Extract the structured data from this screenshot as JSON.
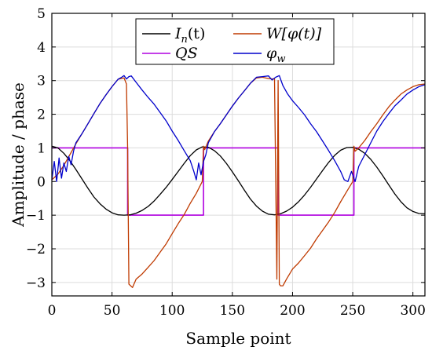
{
  "chart_data": {
    "type": "line",
    "title": "",
    "xlabel": "Sample point",
    "ylabel": "Amplitude / phase",
    "xlim": [
      0,
      310
    ],
    "ylim": [
      -3.4,
      5
    ],
    "xticks": [
      0,
      50,
      100,
      150,
      200,
      250,
      300
    ],
    "yticks": [
      5,
      4,
      3,
      2,
      1,
      0,
      -1,
      -2,
      -3
    ],
    "ytick_labels": [
      "5",
      "4",
      "3",
      "2",
      "1",
      "0",
      "−1",
      "−2",
      "−3"
    ],
    "grid": true,
    "legend_placement": "top-center",
    "legend_columns": 2,
    "series": [
      {
        "name": "I_n(t)",
        "legend_main": "I",
        "legend_sub": "n",
        "legend_rest": "(t)",
        "color": "#000000",
        "x": [
          0,
          5,
          10,
          15,
          20,
          25,
          30,
          35,
          40,
          45,
          50,
          55,
          60,
          65,
          70,
          75,
          80,
          85,
          90,
          95,
          100,
          105,
          110,
          115,
          120,
          125,
          130,
          135,
          140,
          145,
          150,
          155,
          160,
          165,
          170,
          175,
          180,
          185,
          190,
          195,
          200,
          205,
          210,
          215,
          220,
          225,
          230,
          235,
          240,
          245,
          250,
          255,
          260,
          265,
          270,
          275,
          280,
          285,
          290,
          295,
          300,
          305,
          310
        ],
        "y": [
          1.05,
          1.0,
          0.84,
          0.62,
          0.36,
          0.08,
          -0.2,
          -0.46,
          -0.66,
          -0.82,
          -0.93,
          -0.99,
          -1.0,
          -0.99,
          -0.94,
          -0.86,
          -0.74,
          -0.58,
          -0.38,
          -0.17,
          0.06,
          0.3,
          0.54,
          0.77,
          0.94,
          1.03,
          1.02,
          0.92,
          0.76,
          0.54,
          0.29,
          0.02,
          -0.26,
          -0.52,
          -0.73,
          -0.88,
          -0.97,
          -0.99,
          -0.96,
          -0.88,
          -0.76,
          -0.6,
          -0.4,
          -0.17,
          0.08,
          0.33,
          0.57,
          0.78,
          0.93,
          1.01,
          1.02,
          0.96,
          0.84,
          0.66,
          0.43,
          0.17,
          -0.1,
          -0.37,
          -0.6,
          -0.78,
          -0.89,
          -0.95,
          -0.96
        ]
      },
      {
        "name": "W[φ(t)]",
        "legend_main": "W[φ(t)]",
        "legend_sub": "",
        "legend_rest": "",
        "color": "#bf3a00",
        "x": [
          0,
          5,
          10,
          15,
          20,
          25,
          30,
          35,
          40,
          45,
          50,
          55,
          60,
          62,
          63,
          64,
          67,
          70,
          75,
          80,
          85,
          90,
          95,
          100,
          105,
          110,
          115,
          120,
          125,
          126,
          127,
          130,
          135,
          140,
          145,
          150,
          155,
          160,
          165,
          170,
          175,
          180,
          185,
          187,
          188,
          189,
          190,
          192,
          195,
          200,
          205,
          210,
          215,
          220,
          225,
          230,
          235,
          240,
          245,
          250,
          251,
          252,
          255,
          260,
          265,
          270,
          275,
          280,
          285,
          290,
          295,
          300,
          305,
          310
        ],
        "y": [
          0.05,
          0.22,
          0.48,
          0.8,
          1.12,
          1.42,
          1.72,
          2.02,
          2.32,
          2.58,
          2.82,
          3.04,
          3.08,
          2.9,
          1.0,
          -3.05,
          -3.15,
          -2.9,
          -2.75,
          -2.55,
          -2.35,
          -2.1,
          -1.85,
          -1.55,
          -1.25,
          -0.98,
          -0.65,
          -0.35,
          0.0,
          1.05,
          0.95,
          1.2,
          1.48,
          1.72,
          1.98,
          2.24,
          2.48,
          2.7,
          2.92,
          3.08,
          3.1,
          3.06,
          3.05,
          -2.9,
          3.0,
          -3.05,
          -3.1,
          -3.1,
          -2.9,
          -2.6,
          -2.42,
          -2.2,
          -1.98,
          -1.7,
          -1.45,
          -1.2,
          -0.92,
          -0.6,
          -0.3,
          0.0,
          1.05,
          0.9,
          1.0,
          1.22,
          1.48,
          1.72,
          1.98,
          2.22,
          2.42,
          2.6,
          2.72,
          2.82,
          2.88,
          2.9
        ]
      },
      {
        "name": "QS",
        "legend_main": "QS",
        "legend_sub": "",
        "legend_rest": "",
        "color": "#b000e0",
        "step": true,
        "x": [
          0,
          63,
          63,
          126,
          126,
          188,
          188,
          251,
          251,
          310
        ],
        "y": [
          1,
          1,
          -1,
          -1,
          1,
          1,
          -1,
          -1,
          1,
          1
        ]
      },
      {
        "name": "φ_w",
        "legend_main": "φ",
        "legend_sub": "w",
        "legend_rest": "",
        "color": "#0000cc",
        "x": [
          0,
          2,
          4,
          6,
          8,
          10,
          12,
          14,
          16,
          18,
          20,
          25,
          30,
          35,
          40,
          45,
          50,
          55,
          58,
          60,
          62,
          64,
          66,
          70,
          75,
          80,
          85,
          90,
          95,
          100,
          105,
          110,
          115,
          118,
          120,
          122,
          124,
          126,
          128,
          130,
          135,
          140,
          145,
          150,
          155,
          160,
          165,
          170,
          175,
          180,
          183,
          186,
          189,
          192,
          196,
          200,
          205,
          210,
          215,
          220,
          225,
          230,
          235,
          240,
          243,
          246,
          249,
          252,
          255,
          260,
          265,
          270,
          275,
          280,
          285,
          290,
          295,
          300,
          305,
          310
        ],
        "y": [
          0.05,
          0.6,
          0.0,
          0.7,
          0.1,
          0.55,
          0.3,
          0.75,
          0.5,
          0.9,
          1.15,
          1.42,
          1.72,
          2.02,
          2.32,
          2.58,
          2.82,
          3.04,
          3.1,
          3.15,
          3.05,
          3.12,
          3.14,
          2.95,
          2.72,
          2.5,
          2.3,
          2.05,
          1.8,
          1.5,
          1.22,
          0.92,
          0.62,
          0.3,
          0.05,
          0.55,
          0.2,
          0.6,
          0.8,
          1.15,
          1.48,
          1.72,
          1.98,
          2.24,
          2.48,
          2.7,
          2.92,
          3.1,
          3.12,
          3.14,
          3.02,
          3.1,
          3.15,
          2.85,
          2.6,
          2.4,
          2.2,
          1.98,
          1.72,
          1.48,
          1.2,
          0.92,
          0.62,
          0.3,
          0.05,
          0.0,
          0.3,
          0.0,
          0.45,
          0.8,
          1.15,
          1.5,
          1.78,
          2.02,
          2.25,
          2.42,
          2.6,
          2.72,
          2.82,
          2.88
        ]
      }
    ]
  }
}
